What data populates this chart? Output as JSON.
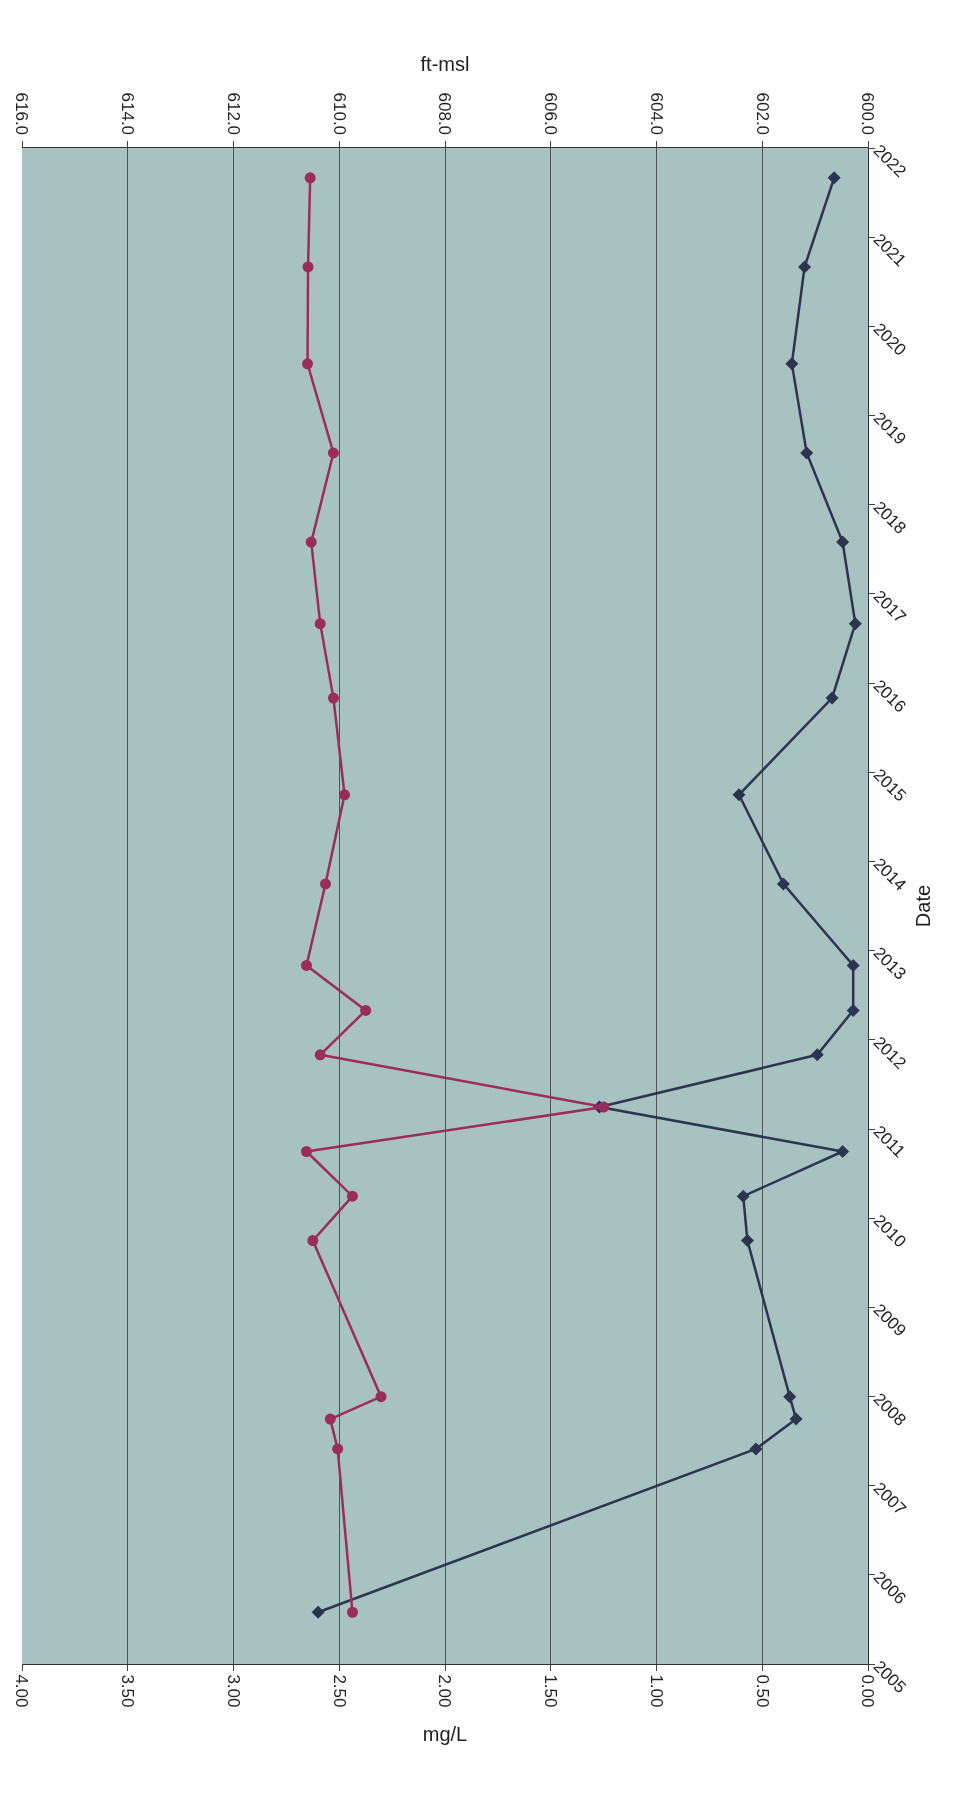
{
  "chart_data": {
    "type": "line",
    "orientation": "horizontal",
    "xlabel": "mg/L",
    "x2label": "ft-msl",
    "ylabel": "Date",
    "grid": "x",
    "xlim": [
      4,
      0
    ],
    "xticks": [
      {
        "value": 4,
        "label": "4.00"
      },
      {
        "value": 3.5,
        "label": "3.50"
      },
      {
        "value": 3,
        "label": "3.00"
      },
      {
        "value": 2.5,
        "label": "2.50"
      },
      {
        "value": 2,
        "label": "2.00"
      },
      {
        "value": 1.5,
        "label": "1.50"
      },
      {
        "value": 1,
        "label": "1.00"
      },
      {
        "value": 0.5,
        "label": "0.50"
      },
      {
        "value": 0,
        "label": "0.00"
      }
    ],
    "x2lim": [
      616,
      600
    ],
    "x2ticks": [
      {
        "value": 616,
        "label": "616.0"
      },
      {
        "value": 614,
        "label": "614.0"
      },
      {
        "value": 612,
        "label": "612.0"
      },
      {
        "value": 610,
        "label": "610.0"
      },
      {
        "value": 608,
        "label": "608.0"
      },
      {
        "value": 606,
        "label": "606.0"
      },
      {
        "value": 604,
        "label": "604.0"
      },
      {
        "value": 602,
        "label": "602.0"
      },
      {
        "value": 600,
        "label": "600.0"
      }
    ],
    "ylim": [
      "2005",
      "2022"
    ],
    "yticks": [
      {
        "value": "2005",
        "label": "2005"
      },
      {
        "value": "2006",
        "label": "2006"
      },
      {
        "value": "2007",
        "label": "2007"
      },
      {
        "value": "2008",
        "label": "2008"
      },
      {
        "value": "2009",
        "label": "2009"
      },
      {
        "value": "2010",
        "label": "2010"
      },
      {
        "value": "2011",
        "label": "2011"
      },
      {
        "value": "2012",
        "label": "2012"
      },
      {
        "value": "2013",
        "label": "2013"
      },
      {
        "value": "2014",
        "label": "2014"
      },
      {
        "value": "2015",
        "label": "2015"
      },
      {
        "value": "2016",
        "label": "2016"
      },
      {
        "value": "2017",
        "label": "2017"
      },
      {
        "value": "2018",
        "label": "2018"
      },
      {
        "value": "2019",
        "label": "2019"
      },
      {
        "value": "2020",
        "label": "2020"
      },
      {
        "value": "2021",
        "label": "2021"
      },
      {
        "value": "2022",
        "label": "2022"
      }
    ],
    "x": [
      "2005-08",
      "2007-06",
      "2007-10",
      "2008-01",
      "2009-10",
      "2010-04",
      "2010-10",
      "2011-04",
      "2011-11",
      "2012-05",
      "2012-11",
      "2013-10",
      "2014-10",
      "2015-11",
      "2016-09",
      "2017-08",
      "2018-08",
      "2019-08",
      "2020-09",
      "2021-09"
    ],
    "series": [
      {
        "color": "#2b3550",
        "marker": "diamond",
        "values": [
          2.6,
          0.53,
          0.34,
          0.37,
          0.57,
          0.59,
          0.12,
          1.27,
          0.24,
          0.07,
          0.07,
          0.4,
          0.61,
          0.17,
          0.06,
          0.12,
          0.29,
          0.36,
          0.3,
          0.16
        ]
      },
      {
        "color": "#9b2d5a",
        "marker": "circle",
        "axis": "x2",
        "values": [
          609.75,
          610.03,
          610.17,
          609.21,
          610.5,
          609.75,
          610.62,
          605.0,
          610.36,
          609.5,
          610.62,
          610.26,
          609.9,
          610.11,
          610.36,
          610.53,
          610.11,
          610.6,
          610.59,
          610.55
        ]
      }
    ]
  }
}
